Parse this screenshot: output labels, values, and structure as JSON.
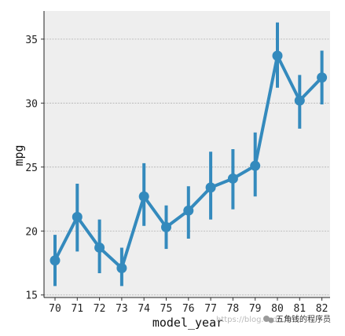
{
  "chart_data": {
    "type": "line",
    "xlabel": "model_year",
    "ylabel": "mpg",
    "x": [
      "70",
      "71",
      "72",
      "73",
      "74",
      "75",
      "76",
      "77",
      "78",
      "79",
      "80",
      "81",
      "82"
    ],
    "series": [
      {
        "values": [
          17.7,
          21.1,
          18.7,
          17.1,
          22.7,
          20.3,
          21.6,
          23.4,
          24.1,
          25.1,
          33.7,
          30.2,
          32.0
        ],
        "ci_low": [
          15.7,
          18.4,
          16.7,
          15.7,
          20.4,
          18.6,
          19.4,
          20.9,
          21.7,
          22.7,
          31.2,
          28.0,
          29.9
        ],
        "ci_high": [
          19.7,
          23.7,
          20.9,
          18.7,
          25.3,
          22.0,
          23.5,
          26.2,
          26.4,
          27.7,
          36.3,
          32.2,
          34.1
        ]
      }
    ],
    "ylim": [
      14.8,
      37.2
    ],
    "yticks": [
      15,
      20,
      25,
      30,
      35
    ],
    "grid": "horizontal",
    "colors": {
      "line": "#348abd",
      "background": "#eeeeee",
      "grid": "#b0b0b0"
    }
  },
  "watermark": {
    "url": "https://blog.csdn.net",
    "account": "五角钱的程序员"
  }
}
